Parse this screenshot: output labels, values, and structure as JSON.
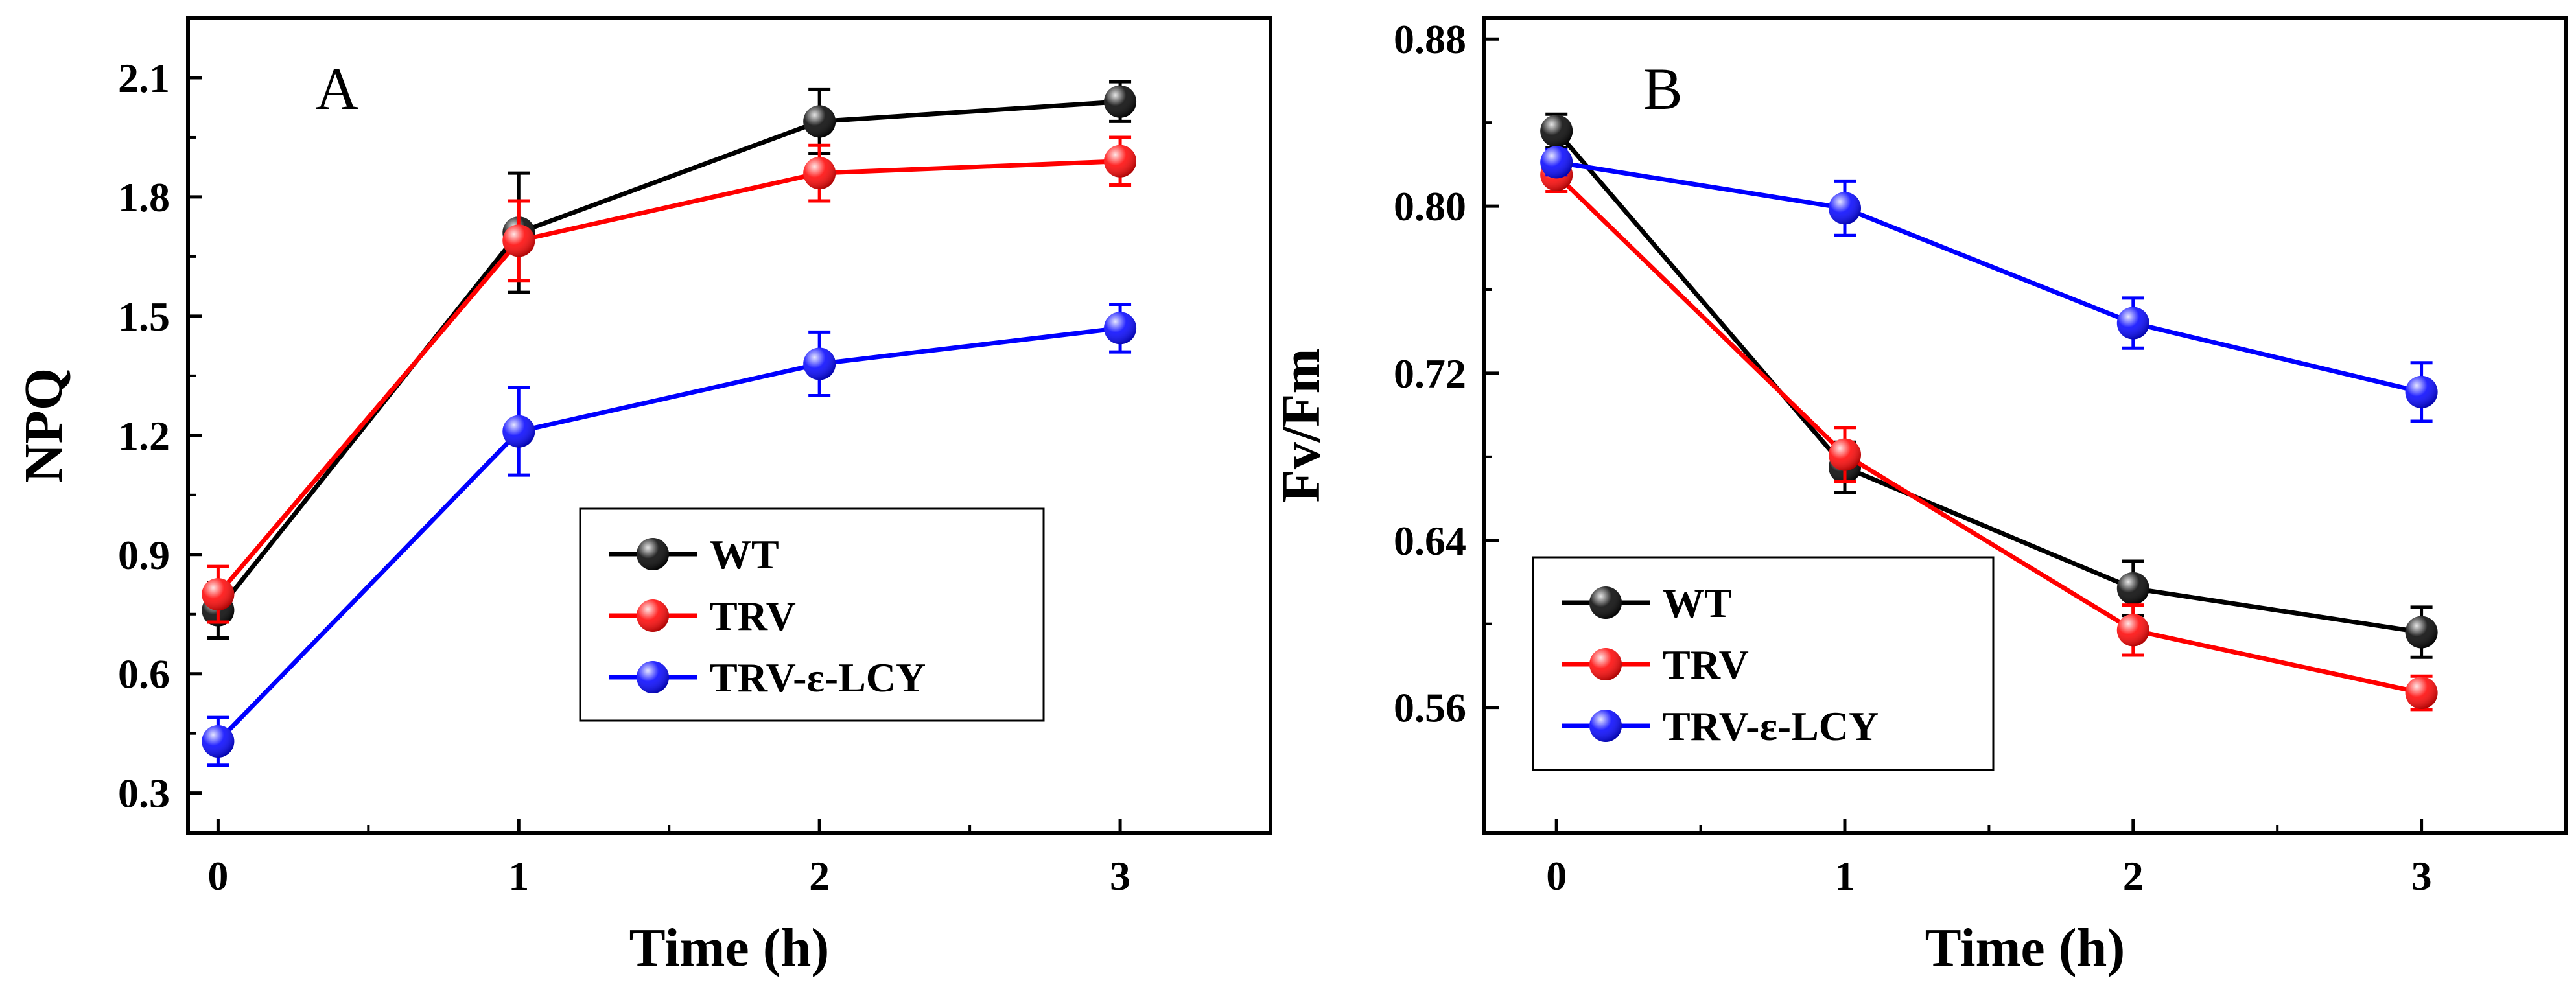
{
  "chart_data": [
    {
      "type": "line",
      "panel_label": "A",
      "x": [
        0,
        1,
        2,
        3
      ],
      "xlim": [
        -0.1,
        3.5
      ],
      "x_ticks": [
        "0",
        "1",
        "2",
        "3"
      ],
      "xlabel": "Time (h)",
      "ylabel": "NPQ",
      "ylim": [
        0.2,
        2.25
      ],
      "y_ticks": [
        "0.3",
        "0.6",
        "0.9",
        "1.2",
        "1.5",
        "1.8",
        "2.1"
      ],
      "legend_position": "lower-right",
      "series": [
        {
          "name": "WT",
          "color": "#000000",
          "values": [
            0.76,
            1.71,
            1.99,
            2.04
          ],
          "errors": [
            0.07,
            0.15,
            0.08,
            0.05
          ]
        },
        {
          "name": "TRV",
          "color": "#ff0000",
          "values": [
            0.8,
            1.69,
            1.86,
            1.89
          ],
          "errors": [
            0.07,
            0.1,
            0.07,
            0.06
          ]
        },
        {
          "name": "TRV-ε-LCY",
          "color": "#0000ff",
          "values": [
            0.43,
            1.21,
            1.38,
            1.47
          ],
          "errors": [
            0.06,
            0.11,
            0.08,
            0.06
          ]
        }
      ]
    },
    {
      "type": "line",
      "panel_label": "B",
      "x": [
        0,
        1,
        2,
        3
      ],
      "xlim": [
        -0.25,
        3.5
      ],
      "x_ticks": [
        "0",
        "1",
        "2",
        "3"
      ],
      "xlabel": "Time (h)",
      "ylabel": "Fv/Fm",
      "ylim": [
        0.5,
        0.89
      ],
      "y_ticks": [
        "0.56",
        "0.64",
        "0.72",
        "0.80",
        "0.88"
      ],
      "legend_position": "lower-left",
      "series": [
        {
          "name": "WT",
          "color": "#000000",
          "values": [
            0.836,
            0.675,
            0.617,
            0.596
          ],
          "errors": [
            0.008,
            0.012,
            0.013,
            0.012
          ]
        },
        {
          "name": "TRV",
          "color": "#ff0000",
          "values": [
            0.815,
            0.681,
            0.597,
            0.567
          ],
          "errors": [
            0.008,
            0.013,
            0.012,
            0.008
          ]
        },
        {
          "name": "TRV-ε-LCY",
          "color": "#0000ff",
          "values": [
            0.821,
            0.799,
            0.744,
            0.711
          ],
          "errors": [
            0.006,
            0.013,
            0.012,
            0.014
          ]
        }
      ]
    }
  ]
}
